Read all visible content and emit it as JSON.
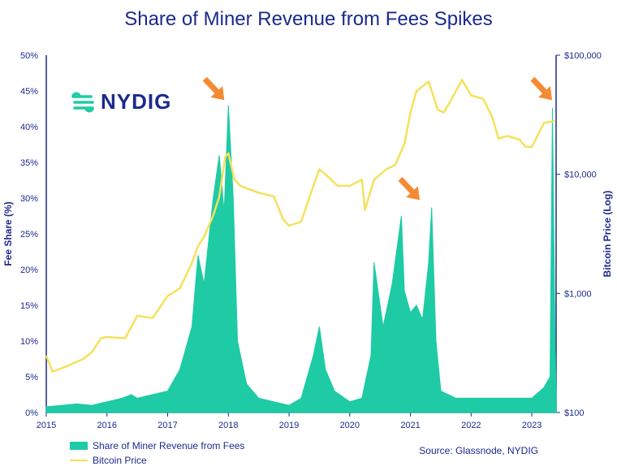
{
  "title": "Share of Miner Revenue from Fees Spikes",
  "logo": {
    "text": "NYDIG",
    "icon": "nydig-logo-icon"
  },
  "source": "Source: Glassnode, NYDIG",
  "colors": {
    "fees": "#1ecba5",
    "price": "#f5e15c",
    "text": "#1b2a8c",
    "arrow": "#f58a32"
  },
  "legend": [
    {
      "label": "Share of Miner Revenue from Fees",
      "kind": "bar",
      "color": "#1ecba5"
    },
    {
      "label": "Bitcoin Price",
      "kind": "line",
      "color": "#f5e15c"
    }
  ],
  "chart_data": {
    "type": "area",
    "xlim": [
      2015.0,
      2023.4
    ],
    "x_ticks": [
      2015,
      2016,
      2017,
      2018,
      2019,
      2020,
      2021,
      2022,
      2023
    ],
    "left_axis": {
      "label": "Fee Share (%)",
      "ylim": [
        0,
        50
      ],
      "ticks": [
        0,
        5,
        10,
        15,
        20,
        25,
        30,
        35,
        40,
        45,
        50
      ],
      "tick_labels": [
        "0%",
        "5%",
        "10%",
        "15%",
        "20%",
        "25%",
        "30%",
        "35%",
        "40%",
        "45%",
        "50%"
      ]
    },
    "right_axis": {
      "label": "Bitcoin Price (Log)",
      "scale": "log",
      "ylim": [
        100,
        100000
      ],
      "ticks": [
        100,
        1000,
        10000,
        100000
      ],
      "tick_labels": [
        "$100",
        "$1,000",
        "$10,000",
        "$100,000"
      ]
    },
    "series": [
      {
        "name": "Share of Miner Revenue from Fees",
        "axis": "left",
        "style": "area",
        "x": [
          2015.0,
          2015.25,
          2015.5,
          2015.75,
          2016.0,
          2016.25,
          2016.4,
          2016.5,
          2016.75,
          2017.0,
          2017.2,
          2017.4,
          2017.5,
          2017.6,
          2017.75,
          2017.85,
          2017.93,
          2018.0,
          2018.08,
          2018.15,
          2018.3,
          2018.5,
          2018.75,
          2019.0,
          2019.2,
          2019.4,
          2019.5,
          2019.6,
          2019.75,
          2020.0,
          2020.2,
          2020.35,
          2020.4,
          2020.55,
          2020.7,
          2020.85,
          2020.9,
          2021.0,
          2021.1,
          2021.2,
          2021.3,
          2021.35,
          2021.42,
          2021.5,
          2021.75,
          2022.0,
          2022.5,
          2023.0,
          2023.2,
          2023.3,
          2023.34,
          2023.38,
          2023.4
        ],
        "values": [
          0.8,
          1.0,
          1.2,
          1.0,
          1.5,
          2.0,
          2.5,
          2.0,
          2.5,
          3.0,
          6.0,
          12.0,
          22.0,
          18.0,
          30.0,
          36.0,
          28.0,
          43.0,
          30.0,
          10.0,
          4.0,
          2.0,
          1.5,
          1.0,
          2.0,
          8.0,
          12.0,
          6.0,
          3.0,
          1.5,
          2.0,
          8.0,
          21.0,
          12.0,
          18.0,
          27.5,
          17.0,
          14.0,
          15.0,
          13.0,
          21.0,
          28.7,
          10.0,
          3.0,
          2.0,
          2.0,
          2.0,
          2.0,
          3.5,
          5.0,
          42.6,
          12.0,
          3.0
        ]
      },
      {
        "name": "Bitcoin Price",
        "axis": "right",
        "style": "line",
        "x": [
          2015.0,
          2015.1,
          2015.3,
          2015.6,
          2015.75,
          2015.9,
          2016.0,
          2016.3,
          2016.5,
          2016.75,
          2017.0,
          2017.2,
          2017.4,
          2017.5,
          2017.6,
          2017.75,
          2017.85,
          2017.95,
          2018.0,
          2018.1,
          2018.2,
          2018.5,
          2018.75,
          2018.9,
          2019.0,
          2019.2,
          2019.4,
          2019.5,
          2019.6,
          2019.8,
          2020.0,
          2020.2,
          2020.25,
          2020.4,
          2020.6,
          2020.75,
          2020.9,
          2021.0,
          2021.1,
          2021.3,
          2021.45,
          2021.55,
          2021.7,
          2021.85,
          2022.0,
          2022.2,
          2022.35,
          2022.45,
          2022.6,
          2022.8,
          2022.9,
          2023.0,
          2023.2,
          2023.38
        ],
        "values": [
          300,
          220,
          240,
          280,
          320,
          420,
          430,
          420,
          650,
          620,
          950,
          1100,
          1800,
          2500,
          3000,
          4500,
          6500,
          14000,
          15000,
          9000,
          8000,
          7000,
          6500,
          4200,
          3700,
          4000,
          8000,
          11000,
          10000,
          8000,
          8000,
          9000,
          5000,
          9000,
          11000,
          12000,
          18000,
          33000,
          50000,
          60000,
          35000,
          33000,
          45000,
          62000,
          46000,
          43000,
          30000,
          20000,
          21000,
          19500,
          17000,
          17000,
          27000,
          28000
        ]
      }
    ],
    "annotations": [
      {
        "type": "arrow",
        "x": 2017.96,
        "y_left": 43.5,
        "text": ""
      },
      {
        "type": "arrow",
        "x": 2021.18,
        "y_left": 29.5,
        "text": ""
      },
      {
        "type": "arrow",
        "x": 2023.36,
        "y_left": 43.5,
        "text": ""
      }
    ]
  }
}
